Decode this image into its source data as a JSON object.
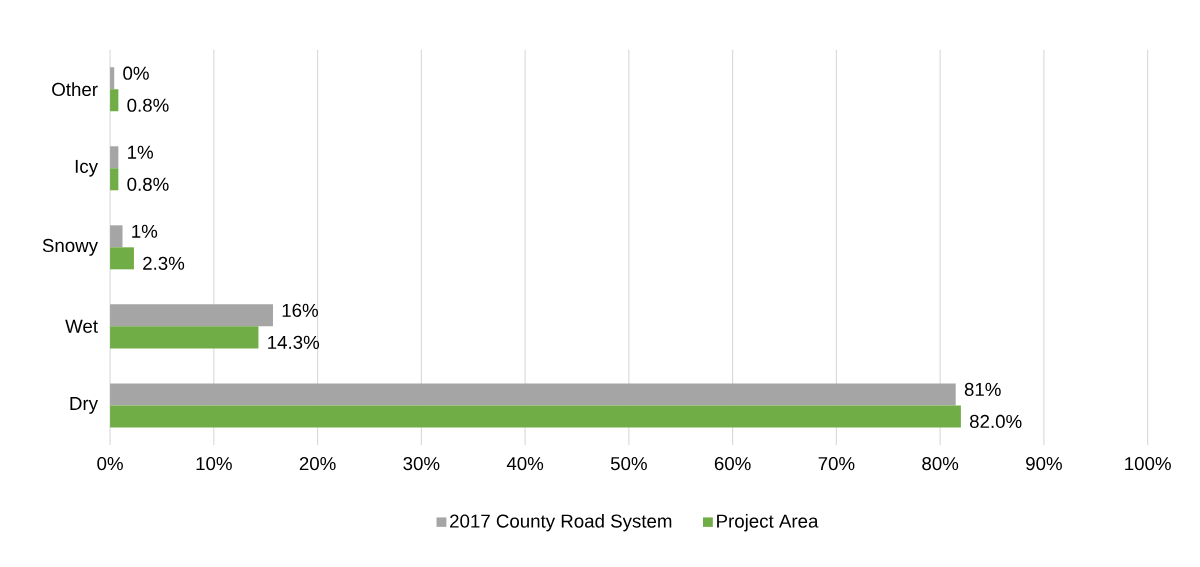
{
  "chart_data": {
    "type": "bar",
    "orientation": "horizontal",
    "categories": [
      "Other",
      "Icy",
      "Snowy",
      "Wet",
      "Dry"
    ],
    "series": [
      {
        "name": "2017 County Road System",
        "color": "#a5a5a5",
        "values": [
          0.4,
          0.8,
          1.2,
          15.7,
          81.5
        ],
        "value_labels": [
          "0%",
          "1%",
          "1%",
          "16%",
          "81%"
        ]
      },
      {
        "name": "Project Area",
        "color": "#70ad47",
        "values": [
          0.8,
          0.8,
          2.3,
          14.3,
          82.0
        ],
        "value_labels": [
          "0.8%",
          "0.8%",
          "2.3%",
          "14.3%",
          "82.0%"
        ]
      }
    ],
    "xlim": [
      0,
      100
    ],
    "xticks": [
      {
        "value": 0,
        "label": "0%"
      },
      {
        "value": 10,
        "label": "10%"
      },
      {
        "value": 20,
        "label": "20%"
      },
      {
        "value": 30,
        "label": "30%"
      },
      {
        "value": 40,
        "label": "40%"
      },
      {
        "value": 50,
        "label": "50%"
      },
      {
        "value": 60,
        "label": "60%"
      },
      {
        "value": 70,
        "label": "70%"
      },
      {
        "value": 80,
        "label": "80%"
      },
      {
        "value": 90,
        "label": "90%"
      },
      {
        "value": 100,
        "label": "100%"
      }
    ],
    "grid": "x",
    "legend": "bottom"
  }
}
